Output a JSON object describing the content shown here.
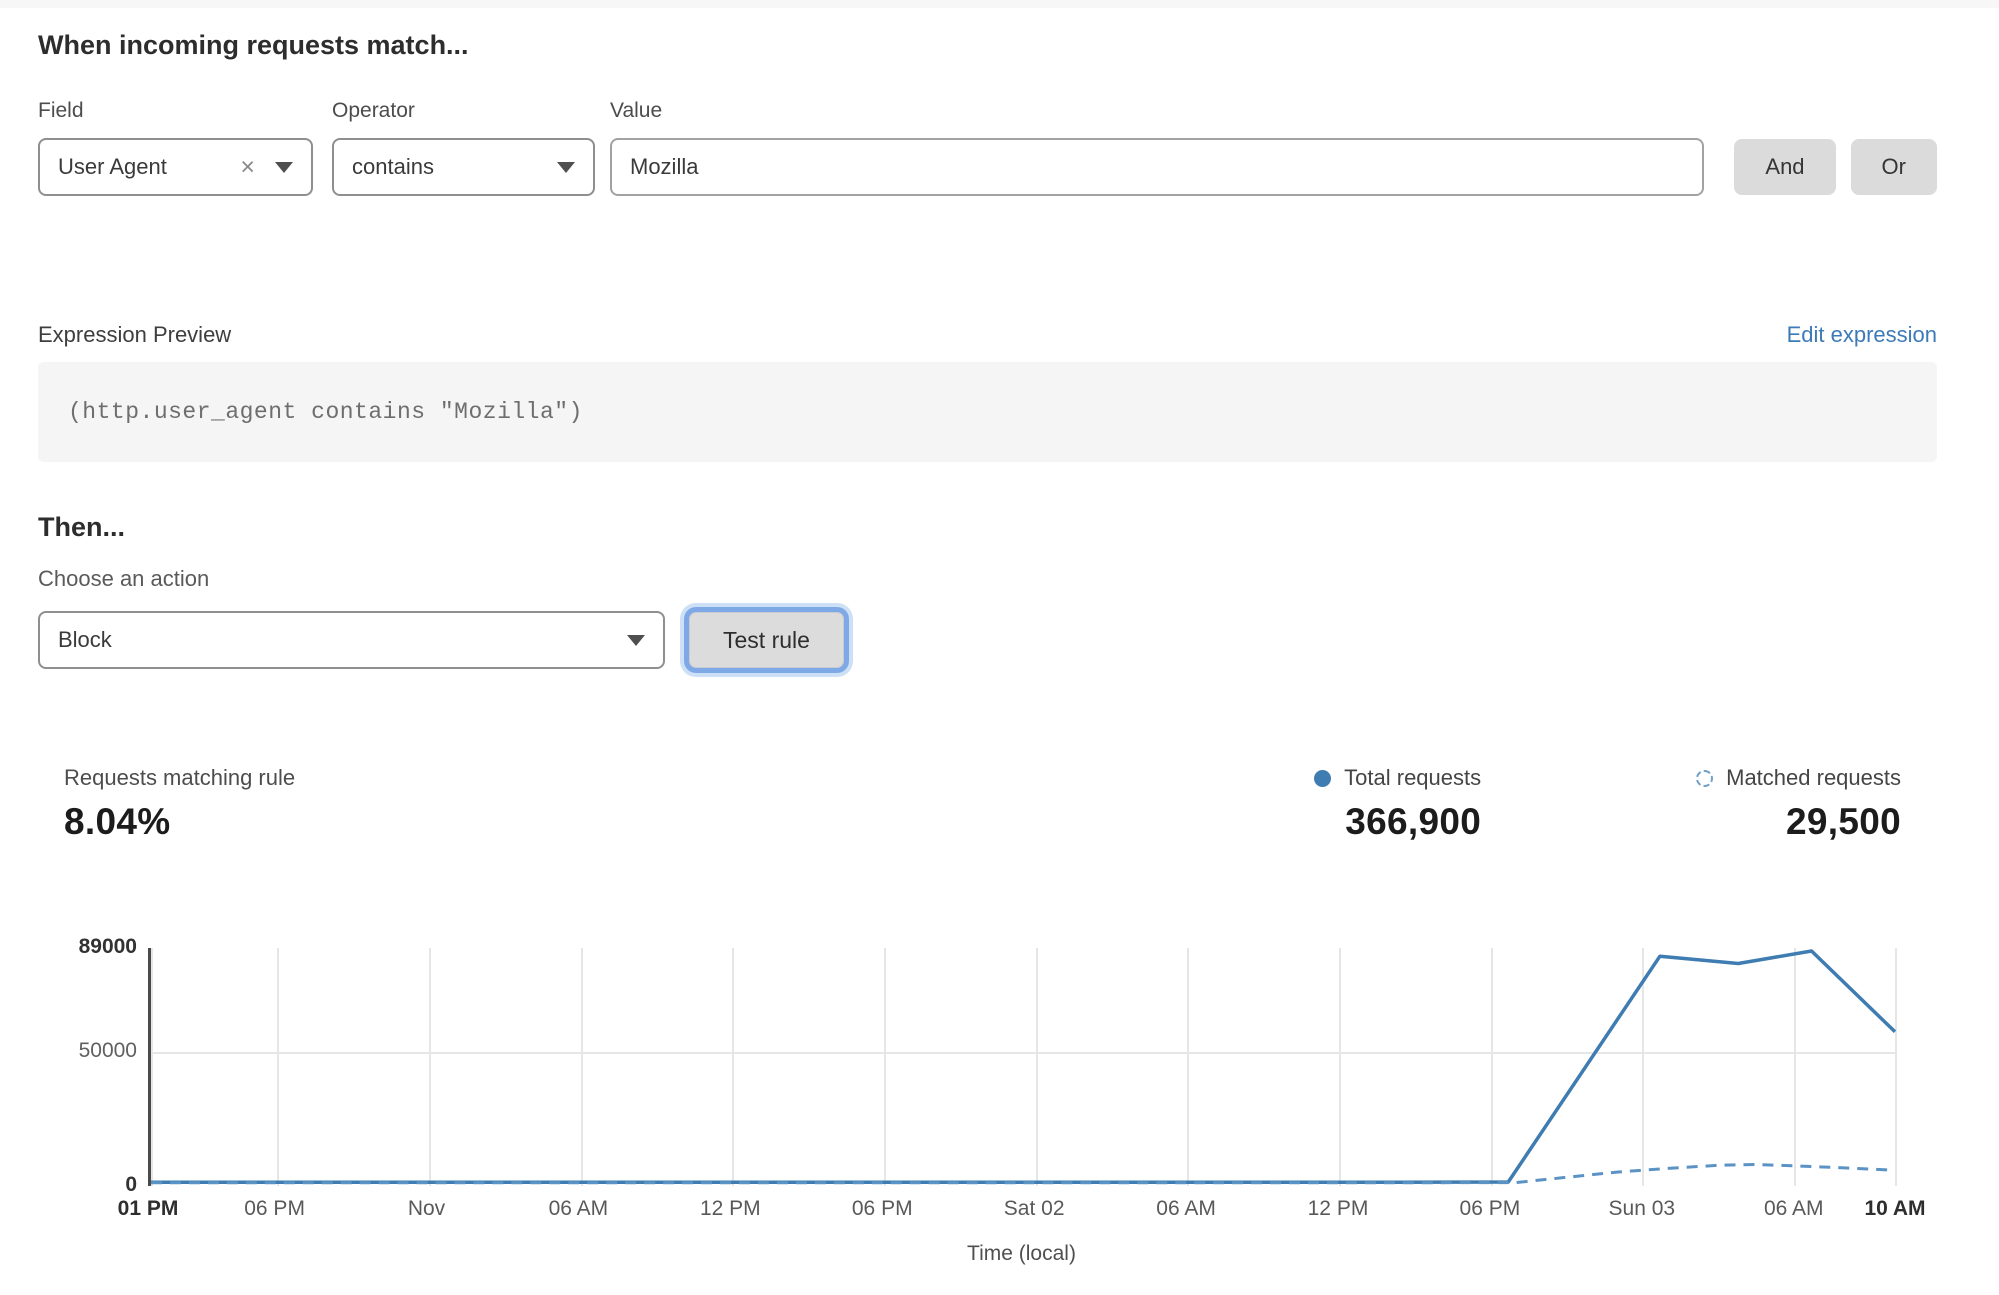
{
  "colors": {
    "accent_blue": "#3e7cb1",
    "dashed_blue": "#5b93c4",
    "link_blue": "#3d7ab8",
    "focus_ring_blue": "#7fa9e6"
  },
  "match": {
    "title": "When incoming requests match...",
    "field": {
      "label": "Field",
      "value": "User Agent",
      "clear_icon": "×"
    },
    "operator": {
      "label": "Operator",
      "value": "contains"
    },
    "value_field": {
      "label": "Value",
      "text": "Mozilla"
    },
    "and_label": "And",
    "or_label": "Or"
  },
  "expression": {
    "label": "Expression Preview",
    "edit_link": "Edit expression",
    "code": "(http.user_agent contains \"Mozilla\")"
  },
  "then": {
    "title": "Then...",
    "action_label": "Choose an action",
    "action_value": "Block",
    "test_button": "Test rule"
  },
  "stats": {
    "matching": {
      "label": "Requests matching rule",
      "value": "8.04%"
    },
    "total": {
      "label": "Total requests",
      "value": "366,900",
      "icon": "filled-circle"
    },
    "matched": {
      "label": "Matched requests",
      "value": "29,500",
      "icon": "dashed-circle"
    }
  },
  "chart_data": {
    "type": "line",
    "title": "",
    "xlabel": "Time (local)",
    "ylabel": "",
    "ylim": [
      0,
      89000
    ],
    "x_hours_span": 69,
    "grid": true,
    "legend_position": "above-chart-right",
    "yticks": [
      {
        "value": 89000,
        "label": "89000",
        "bold": true
      },
      {
        "value": 50000,
        "label": "50000",
        "bold": false
      },
      {
        "value": 0,
        "label": "0",
        "bold": true
      }
    ],
    "xticks": [
      {
        "hour": 0,
        "label": "01 PM",
        "bold": true
      },
      {
        "hour": 5,
        "label": "06 PM",
        "bold": false
      },
      {
        "hour": 11,
        "label": "Nov",
        "bold": false
      },
      {
        "hour": 17,
        "label": "06 AM",
        "bold": false
      },
      {
        "hour": 23,
        "label": "12 PM",
        "bold": false
      },
      {
        "hour": 29,
        "label": "06 PM",
        "bold": false
      },
      {
        "hour": 35,
        "label": "Sat 02",
        "bold": false
      },
      {
        "hour": 41,
        "label": "06 AM",
        "bold": false
      },
      {
        "hour": 47,
        "label": "12 PM",
        "bold": false
      },
      {
        "hour": 53,
        "label": "06 PM",
        "bold": false
      },
      {
        "hour": 59,
        "label": "Sun 03",
        "bold": false
      },
      {
        "hour": 65,
        "label": "06 AM",
        "bold": false
      },
      {
        "hour": 69,
        "label": "10 AM",
        "bold": true
      }
    ],
    "series": [
      {
        "name": "Total requests",
        "style": "solid",
        "color": "#3e7cb1",
        "points": [
          [
            0,
            250
          ],
          [
            6,
            250
          ],
          [
            12,
            250
          ],
          [
            18,
            250
          ],
          [
            24,
            250
          ],
          [
            30,
            250
          ],
          [
            36,
            250
          ],
          [
            42,
            250
          ],
          [
            48,
            250
          ],
          [
            53.7,
            400
          ],
          [
            59.7,
            87000
          ],
          [
            62.8,
            84200
          ],
          [
            65.7,
            89000
          ],
          [
            69,
            58000
          ]
        ]
      },
      {
        "name": "Matched requests",
        "style": "dashed",
        "color": "#5b93c4",
        "points": [
          [
            0,
            80
          ],
          [
            6,
            80
          ],
          [
            12,
            80
          ],
          [
            18,
            80
          ],
          [
            24,
            80
          ],
          [
            30,
            80
          ],
          [
            36,
            80
          ],
          [
            42,
            80
          ],
          [
            48,
            80
          ],
          [
            54,
            150
          ],
          [
            56,
            2200
          ],
          [
            58,
            4200
          ],
          [
            60,
            5600
          ],
          [
            62,
            6800
          ],
          [
            63.5,
            7100
          ],
          [
            65,
            6600
          ],
          [
            67,
            5800
          ],
          [
            69,
            4900
          ]
        ]
      }
    ]
  }
}
